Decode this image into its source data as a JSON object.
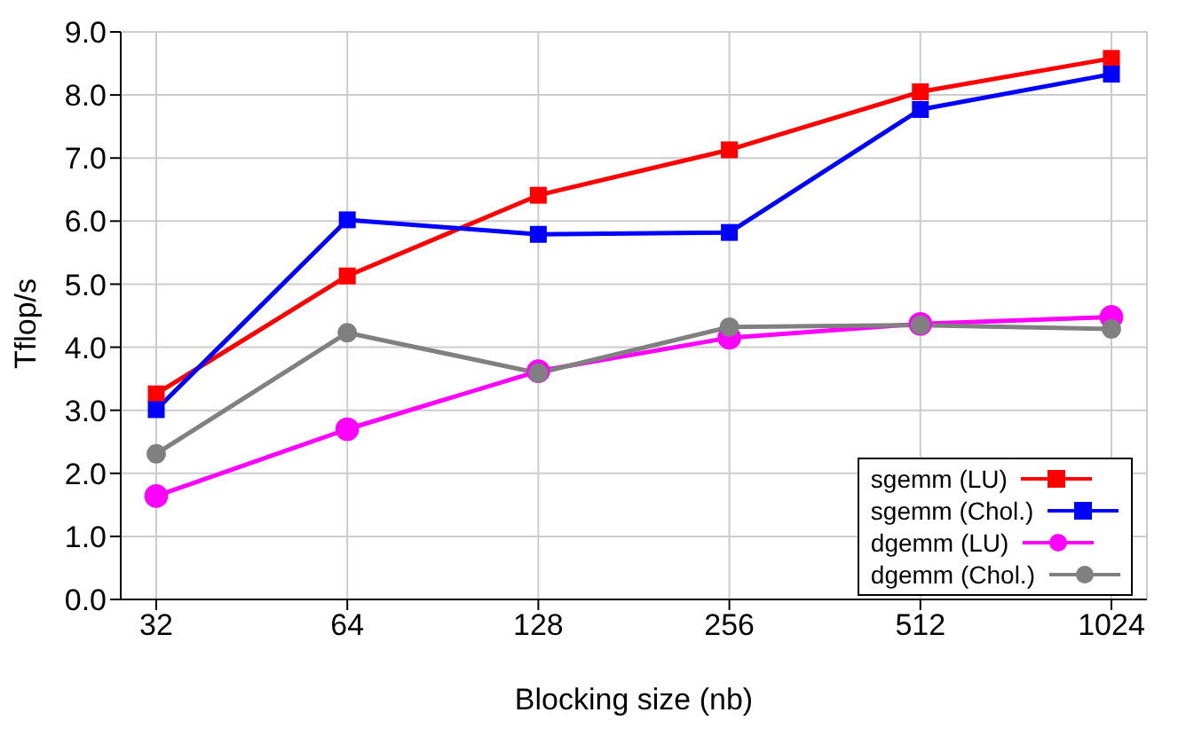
{
  "chart_data": {
    "type": "line",
    "xlabel": "Blocking size (nb)",
    "ylabel": "Tflop/s",
    "categories": [
      "32",
      "64",
      "128",
      "256",
      "512",
      "1024"
    ],
    "series": [
      {
        "name": "sgemm (LU)",
        "color": "#ff0000",
        "marker": "square",
        "values": [
          3.26,
          5.13,
          6.41,
          7.13,
          8.05,
          8.58
        ]
      },
      {
        "name": "sgemm (Chol.)",
        "color": "#0000ff",
        "marker": "square",
        "values": [
          3.01,
          6.02,
          5.79,
          5.82,
          7.77,
          8.33
        ]
      },
      {
        "name": "dgemm (LU)",
        "color": "#ff00ff",
        "marker": "circle",
        "values": [
          1.64,
          2.7,
          3.62,
          4.15,
          4.37,
          4.48
        ]
      },
      {
        "name": "dgemm (Chol.)",
        "color": "#808080",
        "marker": "circle",
        "values": [
          2.31,
          4.23,
          3.59,
          4.32,
          4.35,
          4.29
        ]
      }
    ],
    "ylim": [
      0,
      9
    ],
    "yticks": [
      {
        "value": 0,
        "label": "0.0"
      },
      {
        "value": 1,
        "label": "1.0"
      },
      {
        "value": 2,
        "label": "2.0"
      },
      {
        "value": 3,
        "label": "3.0"
      },
      {
        "value": 4,
        "label": "4.0"
      },
      {
        "value": 5,
        "label": "5.0"
      },
      {
        "value": 6,
        "label": "6.0"
      },
      {
        "value": 7,
        "label": "7.0"
      },
      {
        "value": 8,
        "label": "8.0"
      },
      {
        "value": 9,
        "label": "9.0"
      }
    ],
    "grid": true,
    "legend": "bottom right",
    "line_style": "solid"
  }
}
